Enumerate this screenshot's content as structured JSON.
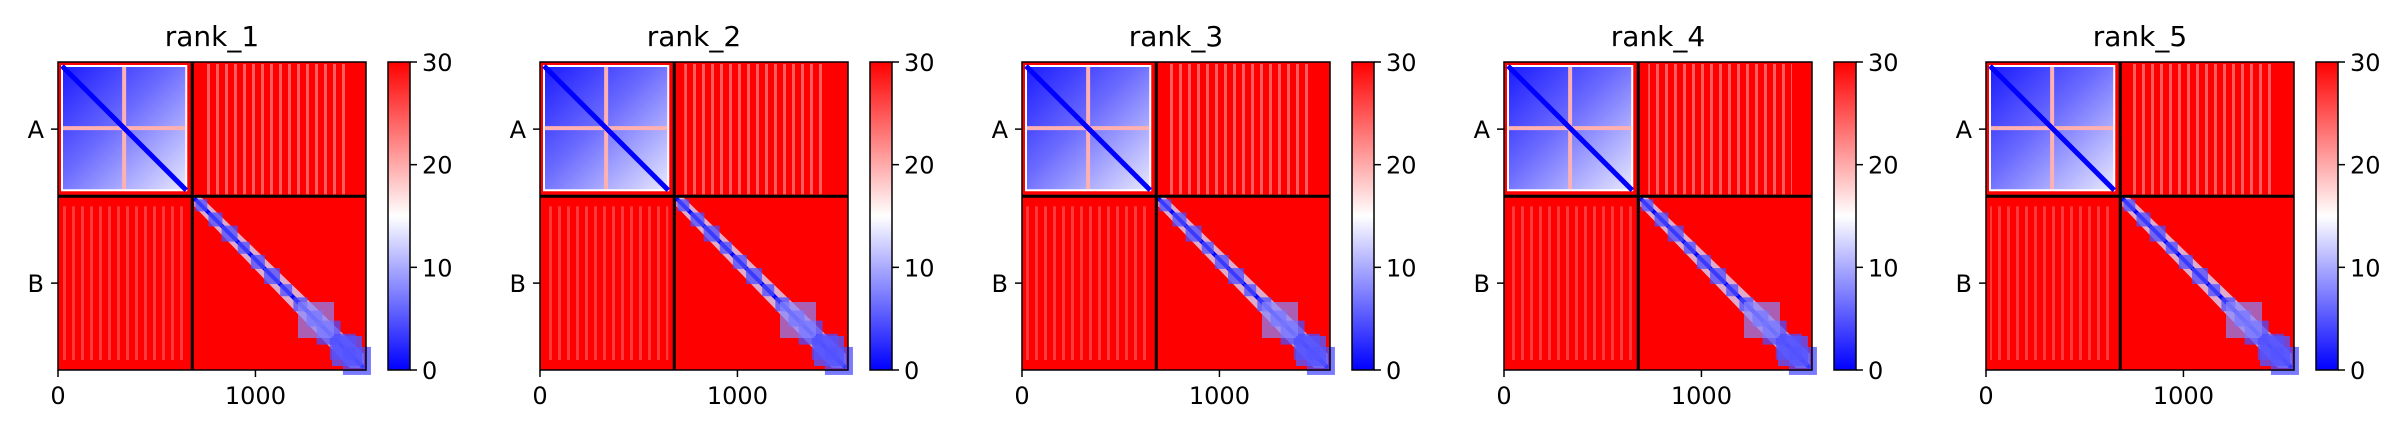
{
  "figure": {
    "chains": [
      "A",
      "B"
    ],
    "colormap": [
      "#0000ff",
      "#ffffff",
      "#ff0000"
    ]
  },
  "chart_data": [
    {
      "type": "heatmap",
      "title": "rank_1",
      "xticks": [
        0,
        1000
      ],
      "yticklabels": [
        "A",
        "B"
      ],
      "chain_split": 680,
      "length": 1560,
      "colorbar": {
        "ticks": [
          0,
          10,
          20,
          30
        ],
        "vmin": 0,
        "vmax": 30
      }
    },
    {
      "type": "heatmap",
      "title": "rank_2",
      "xticks": [
        0,
        1000
      ],
      "yticklabels": [
        "A",
        "B"
      ],
      "chain_split": 680,
      "length": 1560,
      "colorbar": {
        "ticks": [
          0,
          10,
          20,
          30
        ],
        "vmin": 0,
        "vmax": 30
      }
    },
    {
      "type": "heatmap",
      "title": "rank_3",
      "xticks": [
        0,
        1000
      ],
      "yticklabels": [
        "A",
        "B"
      ],
      "chain_split": 680,
      "length": 1560,
      "colorbar": {
        "ticks": [
          0,
          10,
          20,
          30
        ],
        "vmin": 0,
        "vmax": 30
      }
    },
    {
      "type": "heatmap",
      "title": "rank_4",
      "xticks": [
        0,
        1000
      ],
      "yticklabels": [
        "A",
        "B"
      ],
      "chain_split": 680,
      "length": 1560,
      "colorbar": {
        "ticks": [
          0,
          10,
          20,
          30
        ],
        "vmin": 0,
        "vmax": 30
      }
    },
    {
      "type": "heatmap",
      "title": "rank_5",
      "xticks": [
        0,
        1000
      ],
      "yticklabels": [
        "A",
        "B"
      ],
      "chain_split": 680,
      "length": 1560,
      "colorbar": {
        "ticks": [
          0,
          10,
          20,
          30
        ],
        "vmin": 0,
        "vmax": 30
      }
    }
  ]
}
